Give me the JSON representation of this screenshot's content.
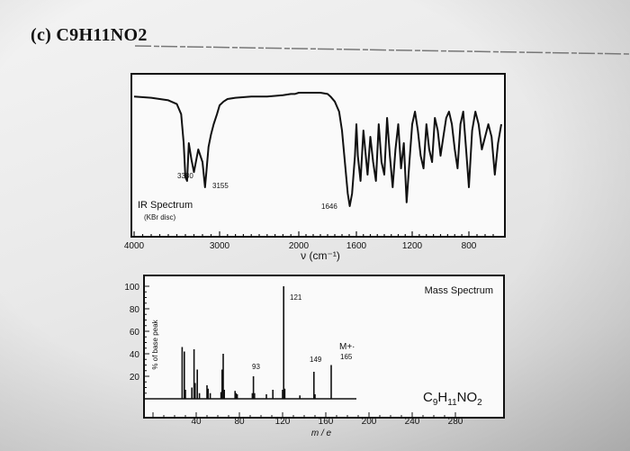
{
  "heading": "(c) C9H11NO2",
  "chart_data": [
    {
      "type": "line",
      "title": "IR Spectrum",
      "subtitle": "(KBr disc)",
      "xlabel": "ν (cm⁻¹)",
      "x_ticks": [
        "4000",
        "3000",
        "2000",
        "1600",
        "1200",
        "800"
      ],
      "xlim": [
        4000,
        600
      ],
      "annotations": [
        "3380",
        "3155",
        "1646"
      ],
      "series": [
        {
          "x": [
            4000,
            3800,
            3700,
            3600,
            3500,
            3450,
            3420,
            3400,
            3380,
            3360,
            3330,
            3300,
            3250,
            3200,
            3170,
            3155,
            3130,
            3100,
            3070,
            3030,
            3000,
            2950,
            2900,
            2800,
            2600,
            2400,
            2200,
            2100,
            2050,
            2000,
            1950,
            1900,
            1850,
            1800,
            1780,
            1750,
            1720,
            1700,
            1680,
            1660,
            1646,
            1630,
            1610,
            1600,
            1590,
            1570,
            1550,
            1520,
            1500,
            1480,
            1460,
            1440,
            1420,
            1400,
            1380,
            1360,
            1340,
            1320,
            1300,
            1280,
            1260,
            1240,
            1220,
            1200,
            1180,
            1160,
            1140,
            1120,
            1100,
            1080,
            1060,
            1040,
            1020,
            1000,
            980,
            960,
            940,
            920,
            900,
            880,
            860,
            840,
            820,
            800,
            780,
            760,
            740,
            720,
            700,
            680,
            660,
            640,
            620,
            600
          ],
          "y": [
            8,
            9,
            10,
            11,
            14,
            22,
            45,
            72,
            75,
            45,
            58,
            68,
            50,
            60,
            80,
            68,
            48,
            38,
            30,
            22,
            15,
            12,
            10,
            9,
            8,
            8,
            7,
            6,
            6,
            5,
            5,
            5,
            5,
            6,
            8,
            12,
            20,
            35,
            60,
            85,
            95,
            85,
            55,
            30,
            55,
            75,
            35,
            70,
            40,
            60,
            75,
            30,
            60,
            70,
            25,
            55,
            80,
            50,
            30,
            65,
            45,
            92,
            60,
            30,
            20,
            35,
            55,
            65,
            30,
            50,
            60,
            25,
            35,
            55,
            40,
            25,
            20,
            30,
            50,
            65,
            30,
            20,
            50,
            80,
            35,
            20,
            30,
            50,
            40,
            30,
            40,
            70,
            45,
            30
          ]
        }
      ]
    },
    {
      "type": "bar",
      "title": "Mass Spectrum",
      "xlabel": "m / e",
      "ylabel": "% of base peak",
      "xlim": [
        0,
        290
      ],
      "ylim": [
        0,
        100
      ],
      "x_ticks": [
        "40",
        "80",
        "120",
        "160",
        "200",
        "240",
        "280"
      ],
      "y_ticks": [
        "100",
        "80",
        "60",
        "40",
        "20"
      ],
      "peak_labels": [
        "121",
        "93",
        "149",
        "M+·",
        "165"
      ],
      "formula": "C9H11NO2",
      "bars": [
        {
          "mz": 27,
          "v": 46
        },
        {
          "mz": 29,
          "v": 42
        },
        {
          "mz": 30,
          "v": 8
        },
        {
          "mz": 36,
          "v": 10
        },
        {
          "mz": 38,
          "v": 44
        },
        {
          "mz": 39,
          "v": 14
        },
        {
          "mz": 41,
          "v": 26
        },
        {
          "mz": 43,
          "v": 5
        },
        {
          "mz": 50,
          "v": 12
        },
        {
          "mz": 51,
          "v": 9
        },
        {
          "mz": 53,
          "v": 5
        },
        {
          "mz": 63,
          "v": 6
        },
        {
          "mz": 64,
          "v": 26
        },
        {
          "mz": 65,
          "v": 40
        },
        {
          "mz": 66,
          "v": 8
        },
        {
          "mz": 76,
          "v": 7
        },
        {
          "mz": 77,
          "v": 5
        },
        {
          "mz": 78,
          "v": 4
        },
        {
          "mz": 92,
          "v": 5
        },
        {
          "mz": 93,
          "v": 20
        },
        {
          "mz": 94,
          "v": 5
        },
        {
          "mz": 105,
          "v": 4
        },
        {
          "mz": 111,
          "v": 8
        },
        {
          "mz": 120,
          "v": 8
        },
        {
          "mz": 121,
          "v": 100
        },
        {
          "mz": 122,
          "v": 9
        },
        {
          "mz": 136,
          "v": 3
        },
        {
          "mz": 149,
          "v": 24
        },
        {
          "mz": 150,
          "v": 4
        },
        {
          "mz": 165,
          "v": 30
        }
      ]
    }
  ]
}
